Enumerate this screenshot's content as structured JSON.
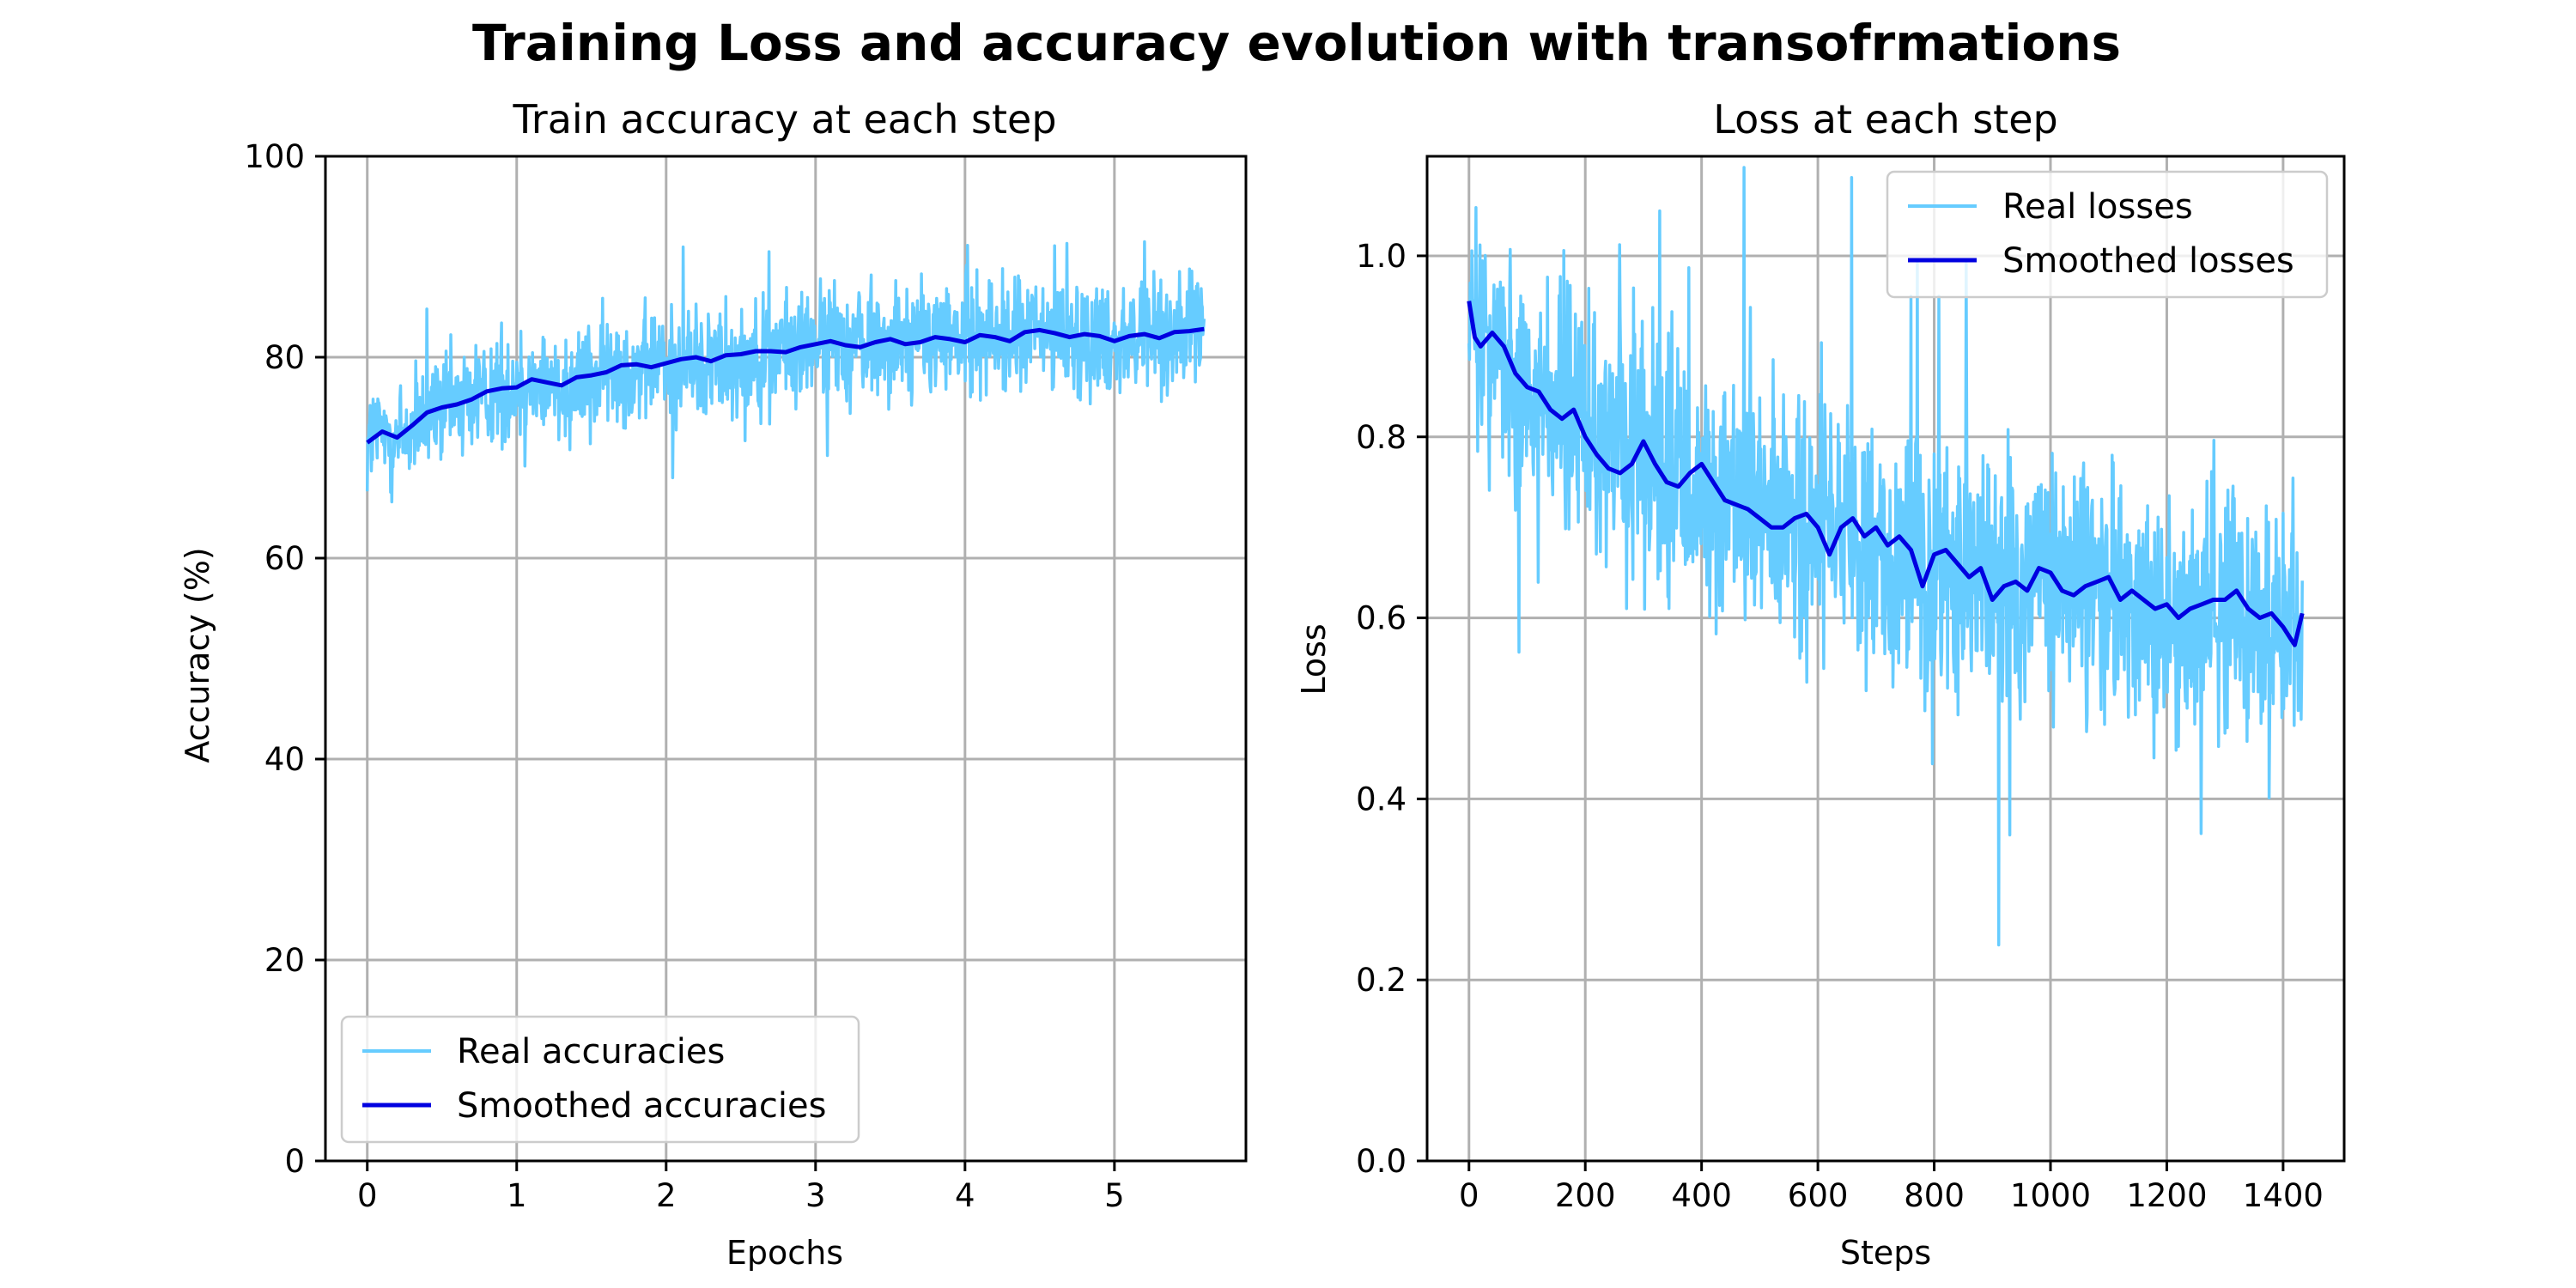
{
  "figure": {
    "title": "Training Loss and accuracy evolution with transofrmations",
    "colors": {
      "real": "#66ccff",
      "smoothed": "#0000e0",
      "grid": "#b0b0b0"
    }
  },
  "chart_data": [
    {
      "type": "line",
      "title": "Train accuracy at each step",
      "xlabel": "Epochs",
      "ylabel": "Accuracy (%)",
      "xlim": [
        -0.28,
        5.88
      ],
      "ylim": [
        0,
        100
      ],
      "xticks": [
        0,
        1,
        2,
        3,
        4,
        5
      ],
      "yticks": [
        0,
        20,
        40,
        60,
        80,
        100
      ],
      "grid": true,
      "legend_position": "lower-left",
      "series": [
        {
          "name": "Real accuracies",
          "color": "#66ccff",
          "x_range": [
            0,
            5.6
          ],
          "points": 1434,
          "noise": 3.5,
          "base_trend": [
            [
              0,
              71.8
            ],
            [
              0.1,
              72.5
            ],
            [
              0.25,
              72
            ],
            [
              0.5,
              75
            ],
            [
              0.8,
              76.5
            ],
            [
              1.1,
              77.5
            ],
            [
              1.3,
              77.2
            ],
            [
              1.7,
              79
            ],
            [
              2.0,
              79.2
            ],
            [
              2.4,
              79.8
            ],
            [
              2.8,
              80.6
            ],
            [
              3.0,
              81.3
            ],
            [
              3.5,
              81.7
            ],
            [
              4.0,
              82
            ],
            [
              4.5,
              82.5
            ],
            [
              5.0,
              82
            ],
            [
              5.6,
              82.5
            ]
          ]
        },
        {
          "name": "Smoothed accuracies",
          "color": "#0000e0",
          "x": [
            0,
            0.1,
            0.2,
            0.3,
            0.4,
            0.5,
            0.6,
            0.7,
            0.8,
            0.9,
            1.0,
            1.1,
            1.2,
            1.3,
            1.4,
            1.5,
            1.6,
            1.7,
            1.8,
            1.9,
            2.0,
            2.1,
            2.2,
            2.3,
            2.4,
            2.5,
            2.6,
            2.7,
            2.8,
            2.9,
            3.0,
            3.1,
            3.2,
            3.3,
            3.4,
            3.5,
            3.6,
            3.7,
            3.8,
            3.9,
            4.0,
            4.1,
            4.2,
            4.3,
            4.4,
            4.5,
            4.6,
            4.7,
            4.8,
            4.9,
            5.0,
            5.1,
            5.2,
            5.3,
            5.4,
            5.5,
            5.6
          ],
          "values": [
            71.5,
            72.6,
            72.0,
            73.2,
            74.5,
            75.0,
            75.3,
            75.8,
            76.6,
            76.9,
            77.0,
            77.8,
            77.5,
            77.2,
            78.0,
            78.2,
            78.5,
            79.2,
            79.3,
            79.0,
            79.4,
            79.8,
            80.0,
            79.6,
            80.2,
            80.3,
            80.6,
            80.6,
            80.5,
            81.0,
            81.3,
            81.6,
            81.2,
            81.0,
            81.5,
            81.8,
            81.3,
            81.5,
            82.0,
            81.8,
            81.5,
            82.2,
            82.0,
            81.6,
            82.5,
            82.7,
            82.4,
            82.0,
            82.3,
            82.1,
            81.6,
            82.1,
            82.3,
            81.9,
            82.5,
            82.6,
            82.8
          ]
        }
      ]
    },
    {
      "type": "line",
      "title": "Loss at each step",
      "xlabel": "Steps",
      "ylabel": "Loss",
      "xlim": [
        -72,
        1505
      ],
      "ylim": [
        0,
        1.11
      ],
      "xticks": [
        0,
        200,
        400,
        600,
        800,
        1000,
        1200,
        1400
      ],
      "yticks": [
        0.0,
        0.2,
        0.4,
        0.6,
        0.8,
        1.0
      ],
      "grid": true,
      "legend_position": "upper-right",
      "series": [
        {
          "name": "Real losses",
          "color": "#66ccff",
          "x_range": [
            0,
            1433
          ],
          "points": 1434,
          "noise": 0.085,
          "base_trend": [
            [
              0,
              0.92
            ],
            [
              50,
              0.9
            ],
            [
              100,
              0.86
            ],
            [
              200,
              0.81
            ],
            [
              300,
              0.77
            ],
            [
              400,
              0.74
            ],
            [
              500,
              0.71
            ],
            [
              600,
              0.69
            ],
            [
              700,
              0.67
            ],
            [
              800,
              0.65
            ],
            [
              900,
              0.64
            ],
            [
              1000,
              0.635
            ],
            [
              1100,
              0.625
            ],
            [
              1200,
              0.61
            ],
            [
              1300,
              0.6
            ],
            [
              1400,
              0.59
            ],
            [
              1433,
              0.58
            ]
          ]
        },
        {
          "name": "Smoothed losses",
          "color": "#0000e0",
          "x": [
            0,
            10,
            20,
            40,
            60,
            80,
            100,
            120,
            140,
            160,
            180,
            200,
            220,
            240,
            260,
            280,
            300,
            320,
            340,
            360,
            380,
            400,
            420,
            440,
            460,
            480,
            500,
            520,
            540,
            560,
            580,
            600,
            620,
            640,
            660,
            680,
            700,
            720,
            740,
            760,
            780,
            800,
            820,
            840,
            860,
            880,
            900,
            920,
            940,
            960,
            980,
            1000,
            1020,
            1040,
            1060,
            1080,
            1100,
            1120,
            1140,
            1160,
            1180,
            1200,
            1220,
            1240,
            1260,
            1280,
            1300,
            1320,
            1340,
            1360,
            1380,
            1400,
            1420,
            1433
          ],
          "values": [
            0.95,
            0.91,
            0.9,
            0.915,
            0.9,
            0.87,
            0.855,
            0.85,
            0.83,
            0.82,
            0.83,
            0.8,
            0.78,
            0.765,
            0.76,
            0.77,
            0.795,
            0.77,
            0.75,
            0.745,
            0.76,
            0.77,
            0.75,
            0.73,
            0.725,
            0.72,
            0.71,
            0.7,
            0.7,
            0.71,
            0.715,
            0.7,
            0.67,
            0.7,
            0.71,
            0.69,
            0.7,
            0.68,
            0.69,
            0.675,
            0.635,
            0.67,
            0.675,
            0.66,
            0.645,
            0.655,
            0.62,
            0.635,
            0.64,
            0.63,
            0.655,
            0.65,
            0.63,
            0.625,
            0.635,
            0.64,
            0.645,
            0.62,
            0.63,
            0.62,
            0.61,
            0.615,
            0.6,
            0.61,
            0.615,
            0.62,
            0.62,
            0.63,
            0.61,
            0.6,
            0.605,
            0.59,
            0.57,
            0.605
          ]
        }
      ]
    }
  ]
}
